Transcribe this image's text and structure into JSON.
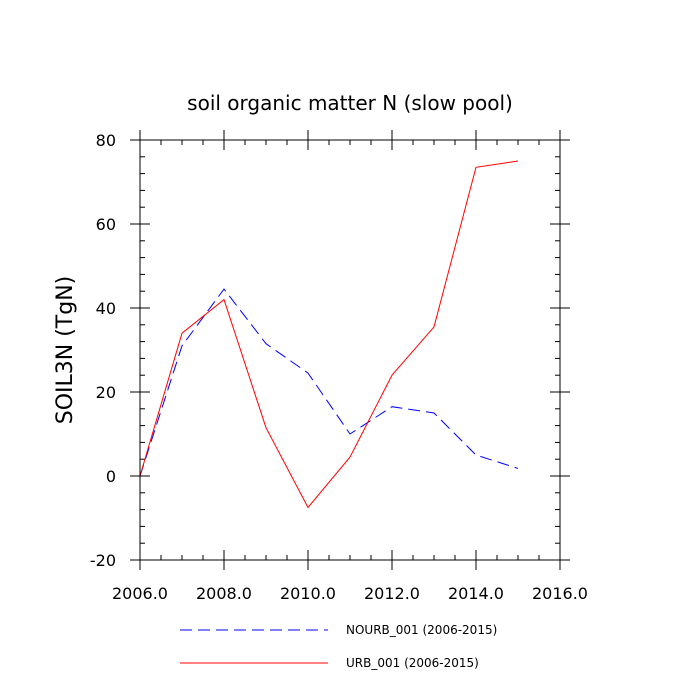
{
  "chart_data": {
    "type": "line",
    "title": "soil organic matter N (slow pool)",
    "xlabel": "",
    "ylabel": "SOIL3N  (TgN)",
    "xlim": [
      2006,
      2016
    ],
    "ylim": [
      -20,
      80
    ],
    "x_major_ticks": [
      2006,
      2008,
      2010,
      2012,
      2014,
      2016
    ],
    "x_tick_labels": [
      "2006.0",
      "2008.0",
      "2010.0",
      "2012.0",
      "2014.0",
      "2016.0"
    ],
    "y_major_ticks": [
      -20,
      0,
      20,
      40,
      60,
      80
    ],
    "y_tick_labels": [
      "-20",
      "0",
      "20",
      "40",
      "60",
      "80"
    ],
    "x_minor_step": 0.5,
    "y_minor_step": 4,
    "grid": false,
    "legend_position": "bottom",
    "series": [
      {
        "name": "NOURB_001 (2006-2015)",
        "color": "#0000ff",
        "style": "dashed",
        "x": [
          2006,
          2007,
          2008,
          2009,
          2010,
          2011,
          2012,
          2013,
          2014,
          2015
        ],
        "values": [
          0,
          31,
          44.5,
          31.5,
          24.5,
          10,
          16.5,
          15,
          5,
          1.8
        ]
      },
      {
        "name": "URB_001 (2006-2015)",
        "color": "#ff0000",
        "style": "solid",
        "x": [
          2006,
          2007,
          2008,
          2009,
          2010,
          2011,
          2012,
          2013,
          2014,
          2015
        ],
        "values": [
          0,
          34,
          42,
          11.5,
          -7.5,
          4.5,
          24,
          35.5,
          73.5,
          75
        ]
      }
    ]
  }
}
